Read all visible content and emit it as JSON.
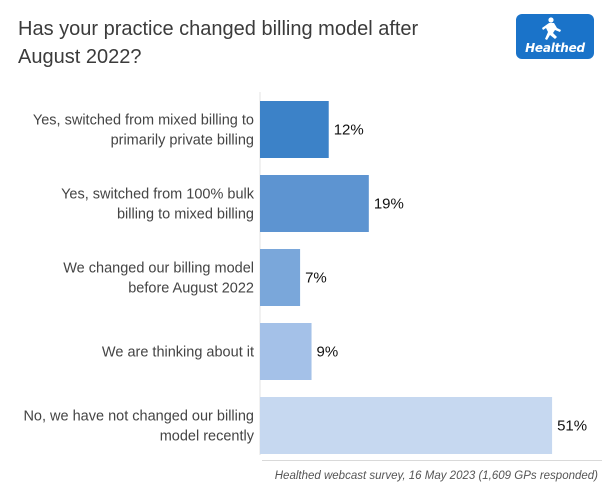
{
  "chart_data": {
    "type": "bar",
    "orientation": "horizontal",
    "title_lines": [
      "Has your practice changed billing model after",
      "August 2022?"
    ],
    "categories": [
      [
        "Yes, switched from mixed billing to",
        "primarily private billing"
      ],
      [
        "Yes, switched from 100% bulk",
        "billing to mixed billing"
      ],
      [
        "We changed our billing model",
        "before August 2022"
      ],
      [
        "We are thinking about it"
      ],
      [
        "No, we have not changed our billing",
        "model recently"
      ]
    ],
    "values": [
      12,
      19,
      7,
      9,
      51
    ],
    "value_labels": [
      "12%",
      "19%",
      "7%",
      "9%",
      "51%"
    ],
    "bar_colors": [
      "#3c82c8",
      "#5d94d1",
      "#7aa7da",
      "#a4c1e8",
      "#c6d8f0"
    ],
    "xlim": [
      0,
      55
    ],
    "grid": false,
    "legend": "none"
  },
  "logo": {
    "text": "Healthed",
    "color": "#1a73c9"
  },
  "source": "Healthed webcast survey, 16 May 2023 (1,609 GPs responded)"
}
